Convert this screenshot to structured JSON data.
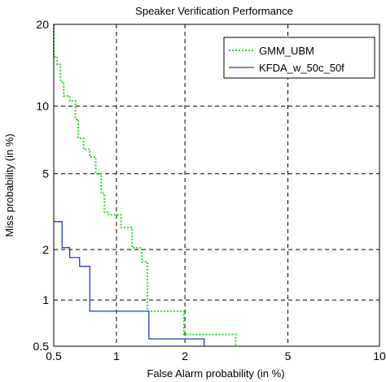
{
  "chart_data": {
    "type": "line",
    "title": "Speaker Verification Performance",
    "xlabel": "False Alarm probability (in %)",
    "ylabel": "Miss probability (in %)",
    "xscale": "probit",
    "yscale": "probit",
    "xlim": [
      0.5,
      10
    ],
    "ylim": [
      0.5,
      20
    ],
    "xticks": [
      0.5,
      1,
      2,
      5,
      10
    ],
    "yticks": [
      0.5,
      1,
      2,
      5,
      10,
      20
    ],
    "xtick_labels": [
      "0.5",
      "1",
      "2",
      "5",
      "10"
    ],
    "ytick_labels": [
      "0.5",
      "1",
      "2",
      "5",
      "10",
      "20"
    ],
    "grid": true,
    "legend_position": "top-right",
    "series": [
      {
        "name": "GMM_UBM",
        "color": "#22dd22",
        "style": "dotted",
        "points": [
          [
            0.5,
            20
          ],
          [
            0.5,
            15.5
          ],
          [
            0.52,
            15.5
          ],
          [
            0.52,
            14.5
          ],
          [
            0.54,
            14.5
          ],
          [
            0.54,
            12.5
          ],
          [
            0.56,
            12.5
          ],
          [
            0.56,
            11
          ],
          [
            0.6,
            11
          ],
          [
            0.6,
            10.5
          ],
          [
            0.64,
            10.5
          ],
          [
            0.64,
            8.8
          ],
          [
            0.66,
            8.8
          ],
          [
            0.66,
            7.3
          ],
          [
            0.7,
            7.3
          ],
          [
            0.7,
            6.5
          ],
          [
            0.75,
            6.5
          ],
          [
            0.75,
            6
          ],
          [
            0.8,
            6
          ],
          [
            0.8,
            5
          ],
          [
            0.85,
            5
          ],
          [
            0.85,
            4
          ],
          [
            0.88,
            4
          ],
          [
            0.88,
            3.2
          ],
          [
            0.92,
            3.2
          ],
          [
            0.92,
            3.1
          ],
          [
            1.05,
            3.1
          ],
          [
            1.05,
            2.65
          ],
          [
            1.18,
            2.65
          ],
          [
            1.18,
            2.05
          ],
          [
            1.3,
            2.05
          ],
          [
            1.3,
            1.7
          ],
          [
            1.38,
            1.7
          ],
          [
            1.38,
            0.85
          ],
          [
            1.98,
            0.85
          ],
          [
            1.98,
            0.6
          ],
          [
            3.2,
            0.6
          ],
          [
            3.2,
            0.5
          ]
        ]
      },
      {
        "name": "KFDA_w_50c_50f",
        "color": "#1f3fbf",
        "style": "solid",
        "points": [
          [
            0.5,
            2.85
          ],
          [
            0.55,
            2.85
          ],
          [
            0.55,
            2.05
          ],
          [
            0.6,
            2.05
          ],
          [
            0.6,
            1.8
          ],
          [
            0.67,
            1.8
          ],
          [
            0.67,
            1.6
          ],
          [
            0.75,
            1.6
          ],
          [
            0.75,
            0.85
          ],
          [
            1.4,
            0.85
          ],
          [
            1.4,
            0.56
          ],
          [
            2.4,
            0.56
          ],
          [
            2.4,
            0.5
          ]
        ]
      }
    ]
  }
}
